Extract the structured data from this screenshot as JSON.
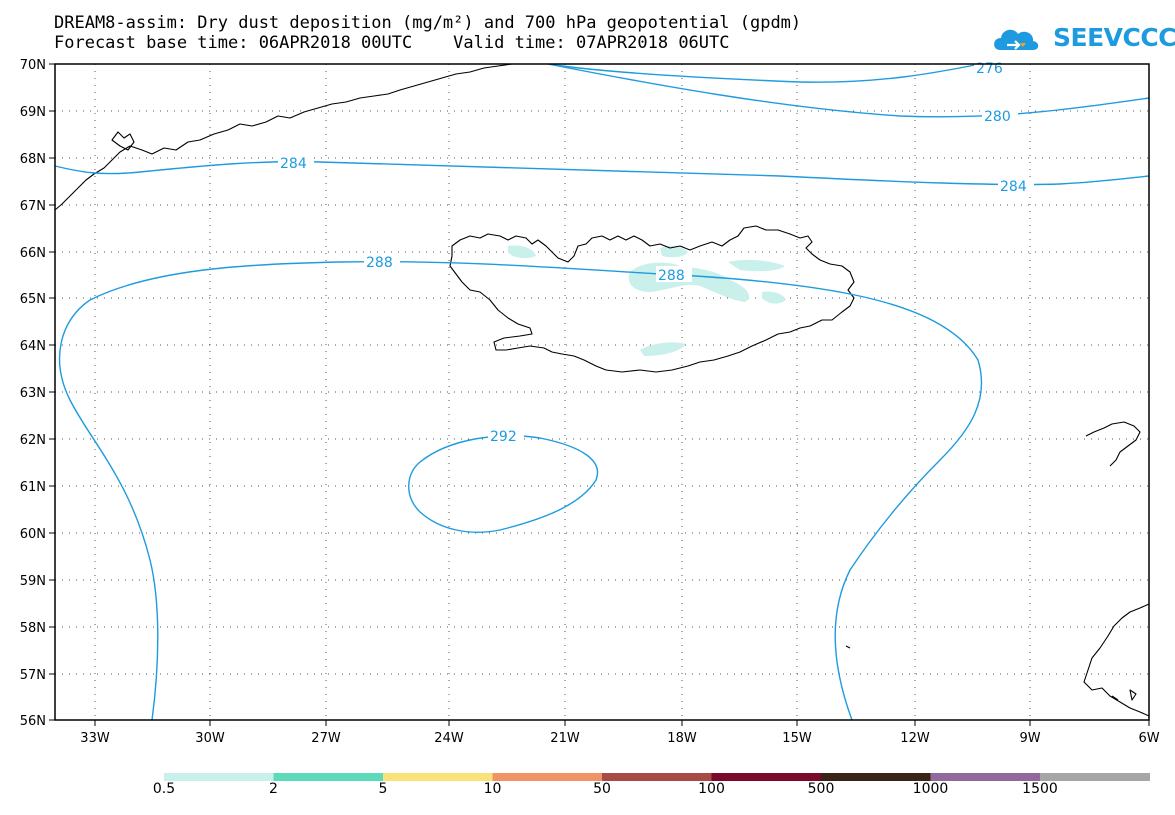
{
  "title": {
    "line1": "DREAM8-assim: Dry dust deposition (mg/m²) and 700 hPa geopotential (gpdm)",
    "line2": "Forecast base time: 06APR2018 00UTC    Valid time: 07APR2018 06UTC"
  },
  "logo": {
    "text": "SEEVCCC",
    "icon": "cloud-icon",
    "color": "#1e9be0"
  },
  "map": {
    "lat_labels": [
      "70N",
      "69N",
      "68N",
      "67N",
      "66N",
      "65N",
      "64N",
      "63N",
      "62N",
      "61N",
      "60N",
      "59N",
      "58N",
      "57N",
      "56N"
    ],
    "lon_labels": [
      "33W",
      "30W",
      "27W",
      "24W",
      "21W",
      "18W",
      "15W",
      "12W",
      "9W",
      "6W"
    ],
    "contour_color": "#1e9be0",
    "contour_labels": [
      "276",
      "280",
      "284",
      "284",
      "288",
      "288",
      "292"
    ]
  },
  "colorbar": {
    "colors": [
      "#c9f0ea",
      "#5cdab9",
      "#f8e27a",
      "#ef9469",
      "#a74b47",
      "#7a0a2a",
      "#3a2418",
      "#8f6a9a",
      "#a6a6a6"
    ],
    "labels": [
      "0.5",
      "2",
      "5",
      "10",
      "50",
      "100",
      "500",
      "1000",
      "1500"
    ]
  }
}
